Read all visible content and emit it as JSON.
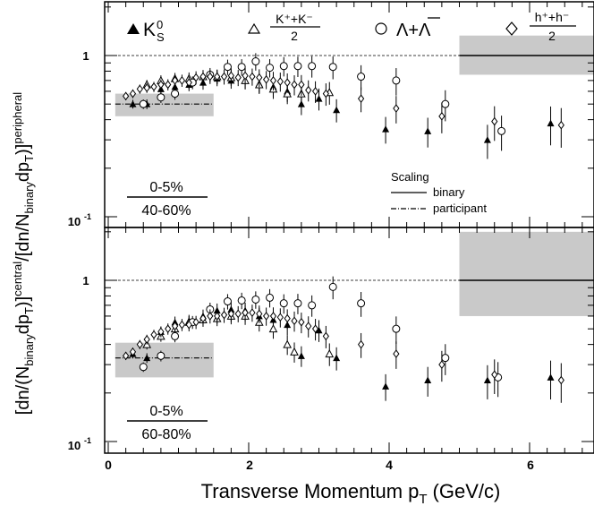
{
  "chart_data": {
    "type": "scatter",
    "xlabel": "Transverse Momentum p",
    "xlabel_sub": "T",
    "xlabel_unit": "(GeV/c)",
    "ylabel_parts": [
      "[dn/(N",
      "binary",
      "dp",
      "T",
      ")]",
      "central",
      "/[dn/N",
      "binary",
      "dp",
      "T",
      ")]",
      "peripheral"
    ],
    "xlim": [
      -0.1,
      7.0
    ],
    "ylim": [
      0.1,
      2.0
    ],
    "y_scale": "log",
    "x_ticks": [
      0,
      2,
      4,
      6
    ],
    "x_tick_labels": [
      "0",
      "2",
      "4",
      "6"
    ],
    "y_tick_labels": {
      "one": "1",
      "tenth_base": "10",
      "tenth_exp": "-1"
    },
    "legend": [
      {
        "marker": "filled-triangle",
        "label_main": "K",
        "label_sup": "0",
        "label_sub": "S"
      },
      {
        "marker": "open-triangle",
        "label_num": "K⁺+K⁻",
        "label_den": "2"
      },
      {
        "marker": "open-circle",
        "label_main": "Λ+Λ"
      },
      {
        "marker": "open-diamond",
        "label_num": "h⁺+h⁻",
        "label_den": "2"
      }
    ],
    "scaling_legend": {
      "title": "Scaling",
      "binary": "binary",
      "participant": "participant"
    },
    "colors": {
      "band": "#c9c9c9",
      "marker": "#000000"
    },
    "panels": [
      {
        "name": "top",
        "ratio_num": "0-5%",
        "ratio_den": "40-60%",
        "participant_level": 0.5,
        "participant_band": [
          0.42,
          0.58
        ],
        "binary_band": [
          0.76,
          1.33
        ],
        "series": [
          {
            "name": "K0S",
            "marker": "filled-triangle",
            "x": [
              0.35,
              0.55,
              0.75,
              0.95,
              1.15,
              1.35,
              1.55,
              1.75,
              1.95,
              2.15,
              2.35,
              2.55,
              2.75,
              3.0,
              3.25,
              3.95,
              4.55,
              5.4,
              6.3
            ],
            "y": [
              0.5,
              0.5,
              0.62,
              0.64,
              0.66,
              0.68,
              0.72,
              0.7,
              0.7,
              0.67,
              0.64,
              0.6,
              0.5,
              0.54,
              0.46,
              0.35,
              0.34,
              0.3,
              0.38
            ]
          },
          {
            "name": "K+K-/2",
            "marker": "open-triangle",
            "x": [
              0.55,
              0.75,
              0.95,
              1.15,
              1.35,
              1.55,
              1.75,
              1.95,
              2.15,
              2.35,
              2.55,
              2.75,
              3.15
            ],
            "y": [
              0.66,
              0.7,
              0.72,
              0.72,
              0.74,
              0.74,
              0.73,
              0.7,
              0.66,
              0.62,
              0.58,
              0.58,
              0.59
            ]
          },
          {
            "name": "Lambda+antiLambda",
            "marker": "open-circle",
            "x": [
              0.5,
              0.75,
              0.95,
              1.2,
              1.45,
              1.7,
              1.9,
              2.1,
              2.3,
              2.5,
              2.7,
              2.9,
              3.2,
              3.6,
              4.1,
              4.8,
              5.6
            ],
            "y": [
              0.5,
              0.55,
              0.58,
              0.68,
              0.76,
              0.85,
              0.85,
              0.92,
              0.84,
              0.86,
              0.86,
              0.86,
              0.85,
              0.74,
              0.7,
              0.5,
              0.34
            ]
          },
          {
            "name": "h+h-/2",
            "marker": "open-diamond",
            "x": [
              0.25,
              0.35,
              0.45,
              0.55,
              0.65,
              0.75,
              0.85,
              0.95,
              1.05,
              1.15,
              1.25,
              1.35,
              1.45,
              1.55,
              1.65,
              1.75,
              1.85,
              1.95,
              2.05,
              2.15,
              2.25,
              2.35,
              2.45,
              2.55,
              2.65,
              2.75,
              2.85,
              2.95,
              3.1,
              3.6,
              4.1,
              4.75,
              5.5,
              6.45
            ],
            "y": [
              0.56,
              0.58,
              0.62,
              0.63,
              0.64,
              0.66,
              0.66,
              0.7,
              0.7,
              0.68,
              0.73,
              0.74,
              0.74,
              0.74,
              0.74,
              0.75,
              0.73,
              0.75,
              0.74,
              0.73,
              0.71,
              0.7,
              0.69,
              0.68,
              0.66,
              0.66,
              0.61,
              0.6,
              0.58,
              0.54,
              0.47,
              0.42,
              0.39,
              0.37
            ]
          }
        ]
      },
      {
        "name": "bottom",
        "ratio_num": "0-5%",
        "ratio_den": "60-80%",
        "participant_level": 0.33,
        "participant_band": [
          0.25,
          0.41
        ],
        "binary_band": [
          0.6,
          2.0
        ],
        "series": [
          {
            "name": "K0S",
            "marker": "filled-triangle",
            "x": [
              0.35,
              0.55,
              0.75,
              0.95,
              1.15,
              1.35,
              1.55,
              1.75,
              1.95,
              2.15,
              2.35,
              2.55,
              2.75,
              3.0,
              3.25,
              3.95,
              4.55,
              5.4,
              6.3
            ],
            "y": [
              0.35,
              0.33,
              0.48,
              0.55,
              0.56,
              0.6,
              0.65,
              0.66,
              0.65,
              0.6,
              0.57,
              0.53,
              0.34,
              0.49,
              0.33,
              0.22,
              0.24,
              0.24,
              0.25
            ]
          },
          {
            "name": "K+K-/2",
            "marker": "open-triangle",
            "x": [
              0.55,
              0.75,
              0.95,
              1.15,
              1.35,
              1.55,
              1.75,
              1.95,
              2.15,
              2.35,
              2.55,
              2.65,
              3.15
            ],
            "y": [
              0.4,
              0.45,
              0.5,
              0.55,
              0.57,
              0.58,
              0.6,
              0.6,
              0.55,
              0.5,
              0.4,
              0.36,
              0.35
            ]
          },
          {
            "name": "Lambda+antiLambda",
            "marker": "open-circle",
            "x": [
              0.5,
              0.75,
              0.95,
              1.2,
              1.45,
              1.7,
              1.9,
              2.1,
              2.3,
              2.5,
              2.7,
              2.9,
              3.2,
              3.6,
              4.1,
              4.8,
              5.55
            ],
            "y": [
              0.29,
              0.34,
              0.45,
              0.55,
              0.66,
              0.74,
              0.75,
              0.76,
              0.78,
              0.72,
              0.72,
              0.7,
              0.91,
              0.72,
              0.5,
              0.33,
              0.25
            ]
          },
          {
            "name": "h+h-/2",
            "marker": "open-diamond",
            "x": [
              0.25,
              0.35,
              0.45,
              0.55,
              0.65,
              0.75,
              0.85,
              0.95,
              1.05,
              1.15,
              1.25,
              1.35,
              1.45,
              1.55,
              1.65,
              1.75,
              1.85,
              1.95,
              2.05,
              2.15,
              2.25,
              2.35,
              2.45,
              2.55,
              2.65,
              2.75,
              2.85,
              2.95,
              3.1,
              3.6,
              4.1,
              4.75,
              5.5,
              6.45
            ],
            "y": [
              0.34,
              0.36,
              0.4,
              0.43,
              0.46,
              0.48,
              0.5,
              0.52,
              0.53,
              0.53,
              0.55,
              0.58,
              0.6,
              0.6,
              0.61,
              0.62,
              0.62,
              0.63,
              0.63,
              0.62,
              0.6,
              0.6,
              0.59,
              0.58,
              0.56,
              0.55,
              0.52,
              0.5,
              0.45,
              0.4,
              0.35,
              0.3,
              0.26,
              0.24
            ]
          }
        ]
      }
    ]
  }
}
